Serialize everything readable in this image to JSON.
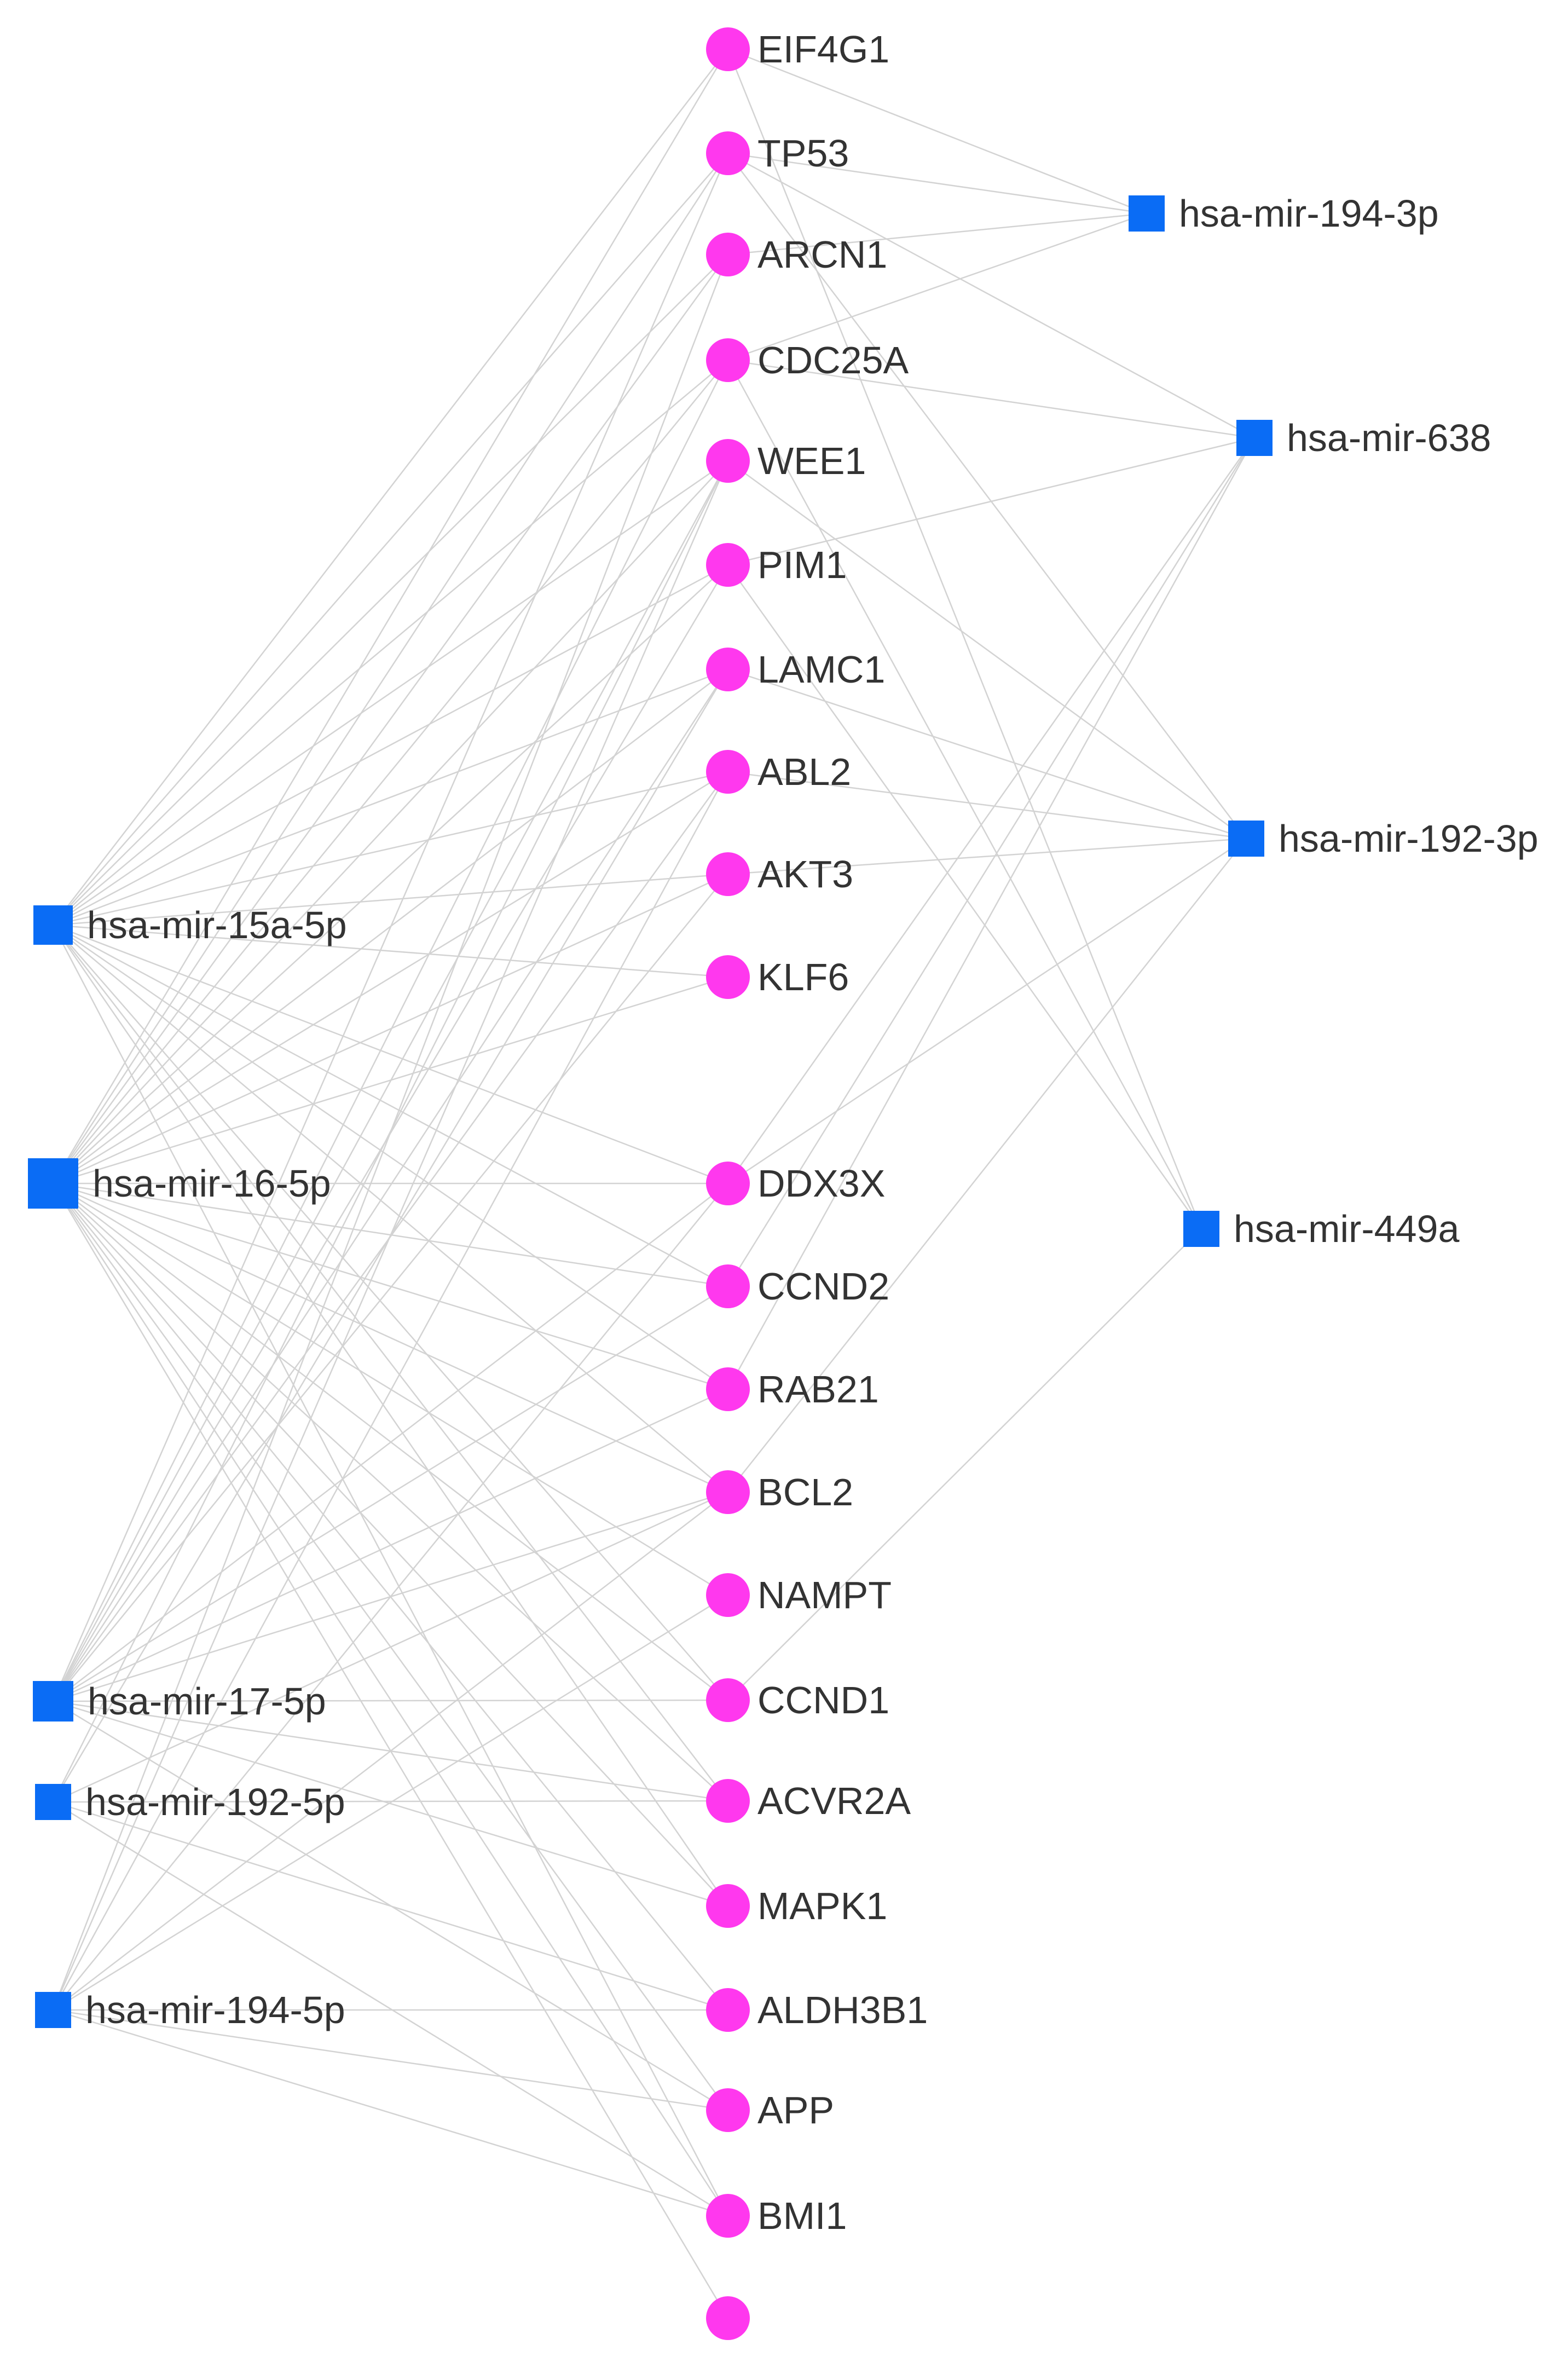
{
  "diagram": {
    "colors": {
      "mirna": "#0a6cf5",
      "gene": "#ff38ee",
      "edge": "#d3d3d3",
      "label": "#333333"
    },
    "left_mirnas": [
      {
        "id": "m15a",
        "label": "hsa-mir-15a-5p"
      },
      {
        "id": "m16",
        "label": "hsa-mir-16-5p"
      },
      {
        "id": "m17",
        "label": "hsa-mir-17-5p"
      },
      {
        "id": "m192_5p",
        "label": "hsa-mir-192-5p"
      },
      {
        "id": "m194_5p",
        "label": "hsa-mir-194-5p"
      }
    ],
    "genes": [
      {
        "id": "EIF4G1",
        "label": "EIF4G1"
      },
      {
        "id": "TP53",
        "label": "TP53"
      },
      {
        "id": "ARCN1",
        "label": "ARCN1"
      },
      {
        "id": "CDC25A",
        "label": "CDC25A"
      },
      {
        "id": "WEE1",
        "label": "WEE1"
      },
      {
        "id": "PIM1",
        "label": "PIM1"
      },
      {
        "id": "LAMC1",
        "label": "LAMC1"
      },
      {
        "id": "ABL2",
        "label": "ABL2"
      },
      {
        "id": "AKT3",
        "label": "AKT3"
      },
      {
        "id": "KLF6",
        "label": "KLF6"
      },
      {
        "id": "DDX3X",
        "label": "DDX3X"
      },
      {
        "id": "CCND2",
        "label": "CCND2"
      },
      {
        "id": "RAB21",
        "label": "RAB21"
      },
      {
        "id": "BCL2",
        "label": "BCL2"
      },
      {
        "id": "NAMPT",
        "label": "NAMPT"
      },
      {
        "id": "CCND1",
        "label": "CCND1"
      },
      {
        "id": "ACVR2A",
        "label": "ACVR2A"
      },
      {
        "id": "MAPK1",
        "label": "MAPK1"
      },
      {
        "id": "ALDH3B1",
        "label": "ALDH3B1"
      },
      {
        "id": "APP",
        "label": "APP"
      },
      {
        "id": "BMI1",
        "label": "BMI1"
      },
      {
        "id": "G22",
        "label": ""
      }
    ],
    "right_mirnas": [
      {
        "id": "m194_3p",
        "label": "hsa-mir-194-3p"
      },
      {
        "id": "m638",
        "label": "hsa-mir-638"
      },
      {
        "id": "m192_3p",
        "label": "hsa-mir-192-3p"
      },
      {
        "id": "m449a",
        "label": "hsa-mir-449a"
      }
    ],
    "edges": [
      [
        "m15a",
        "EIF4G1"
      ],
      [
        "m15a",
        "TP53"
      ],
      [
        "m15a",
        "ARCN1"
      ],
      [
        "m15a",
        "CDC25A"
      ],
      [
        "m15a",
        "WEE1"
      ],
      [
        "m15a",
        "PIM1"
      ],
      [
        "m15a",
        "LAMC1"
      ],
      [
        "m15a",
        "ABL2"
      ],
      [
        "m15a",
        "AKT3"
      ],
      [
        "m15a",
        "KLF6"
      ],
      [
        "m15a",
        "DDX3X"
      ],
      [
        "m15a",
        "CCND2"
      ],
      [
        "m15a",
        "RAB21"
      ],
      [
        "m15a",
        "BCL2"
      ],
      [
        "m15a",
        "CCND1"
      ],
      [
        "m15a",
        "ACVR2A"
      ],
      [
        "m15a",
        "MAPK1"
      ],
      [
        "m15a",
        "BMI1"
      ],
      [
        "m16",
        "EIF4G1"
      ],
      [
        "m16",
        "TP53"
      ],
      [
        "m16",
        "ARCN1"
      ],
      [
        "m16",
        "CDC25A"
      ],
      [
        "m16",
        "WEE1"
      ],
      [
        "m16",
        "PIM1"
      ],
      [
        "m16",
        "LAMC1"
      ],
      [
        "m16",
        "ABL2"
      ],
      [
        "m16",
        "AKT3"
      ],
      [
        "m16",
        "KLF6"
      ],
      [
        "m16",
        "DDX3X"
      ],
      [
        "m16",
        "CCND2"
      ],
      [
        "m16",
        "RAB21"
      ],
      [
        "m16",
        "BCL2"
      ],
      [
        "m16",
        "NAMPT"
      ],
      [
        "m16",
        "CCND1"
      ],
      [
        "m16",
        "ACVR2A"
      ],
      [
        "m16",
        "MAPK1"
      ],
      [
        "m16",
        "ALDH3B1"
      ],
      [
        "m16",
        "APP"
      ],
      [
        "m16",
        "BMI1"
      ],
      [
        "m16",
        "G22"
      ],
      [
        "m17",
        "TP53"
      ],
      [
        "m17",
        "CDC25A"
      ],
      [
        "m17",
        "WEE1"
      ],
      [
        "m17",
        "PIM1"
      ],
      [
        "m17",
        "LAMC1"
      ],
      [
        "m17",
        "ABL2"
      ],
      [
        "m17",
        "AKT3"
      ],
      [
        "m17",
        "DDX3X"
      ],
      [
        "m17",
        "CCND2"
      ],
      [
        "m17",
        "RAB21"
      ],
      [
        "m17",
        "BCL2"
      ],
      [
        "m17",
        "CCND1"
      ],
      [
        "m17",
        "ACVR2A"
      ],
      [
        "m17",
        "MAPK1"
      ],
      [
        "m17",
        "APP"
      ],
      [
        "m192_5p",
        "WEE1"
      ],
      [
        "m192_5p",
        "LAMC1"
      ],
      [
        "m192_5p",
        "BCL2"
      ],
      [
        "m192_5p",
        "ACVR2A"
      ],
      [
        "m192_5p",
        "ALDH3B1"
      ],
      [
        "m192_5p",
        "BMI1"
      ],
      [
        "m194_5p",
        "ARCN1"
      ],
      [
        "m194_5p",
        "WEE1"
      ],
      [
        "m194_5p",
        "ABL2"
      ],
      [
        "m194_5p",
        "DDX3X"
      ],
      [
        "m194_5p",
        "BCL2"
      ],
      [
        "m194_5p",
        "NAMPT"
      ],
      [
        "m194_5p",
        "ALDH3B1"
      ],
      [
        "m194_5p",
        "APP"
      ],
      [
        "m194_5p",
        "BMI1"
      ],
      [
        "m194_3p",
        "TP53"
      ],
      [
        "m194_3p",
        "ARCN1"
      ],
      [
        "m194_3p",
        "CDC25A"
      ],
      [
        "m194_3p",
        "EIF4G1"
      ],
      [
        "m638",
        "TP53"
      ],
      [
        "m638",
        "CDC25A"
      ],
      [
        "m638",
        "PIM1"
      ],
      [
        "m638",
        "DDX3X"
      ],
      [
        "m638",
        "CCND2"
      ],
      [
        "m638",
        "RAB21"
      ],
      [
        "m192_3p",
        "TP53"
      ],
      [
        "m192_3p",
        "WEE1"
      ],
      [
        "m192_3p",
        "LAMC1"
      ],
      [
        "m192_3p",
        "ABL2"
      ],
      [
        "m192_3p",
        "AKT3"
      ],
      [
        "m192_3p",
        "DDX3X"
      ],
      [
        "m192_3p",
        "BCL2"
      ],
      [
        "m449a",
        "EIF4G1"
      ],
      [
        "m449a",
        "CDC25A"
      ],
      [
        "m449a",
        "PIM1"
      ],
      [
        "m449a",
        "CCND1"
      ]
    ]
  }
}
